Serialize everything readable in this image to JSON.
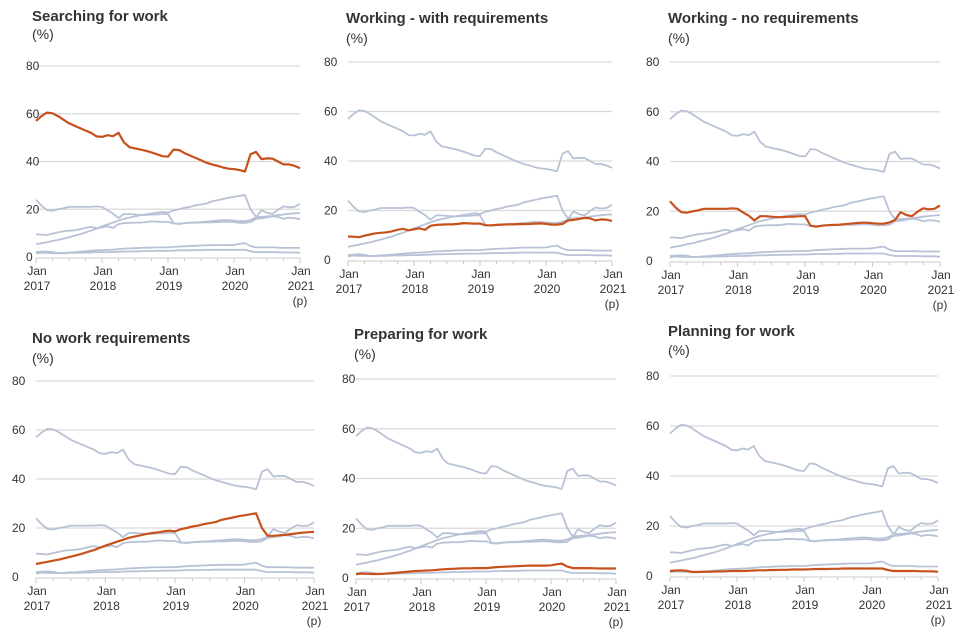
{
  "chart_data": [
    {
      "type": "line",
      "title": "Searching for work",
      "ylabel": "(%)",
      "highlight": 0
    },
    {
      "type": "line",
      "title": "Working - with requirements",
      "ylabel": "(%)",
      "highlight": 1
    },
    {
      "type": "line",
      "title": "Working - no requirements",
      "ylabel": "(%)",
      "highlight": 2
    },
    {
      "type": "line",
      "title": "No work requirements",
      "ylabel": "(%)",
      "highlight": 3
    },
    {
      "type": "line",
      "title": "Preparing for work",
      "ylabel": "(%)",
      "highlight": 4
    },
    {
      "type": "line",
      "title": "Planning for work",
      "ylabel": "(%)",
      "highlight": 5
    }
  ],
  "shared": {
    "ylim": [
      0,
      80
    ],
    "yticks": [
      "0",
      "20",
      "40",
      "60",
      "80"
    ],
    "xticks": [
      {
        "line1": "Jan",
        "line2": "2017",
        "line3": ""
      },
      {
        "line1": "Jan",
        "line2": "2018",
        "line3": ""
      },
      {
        "line1": "Jan",
        "line2": "2019",
        "line3": ""
      },
      {
        "line1": "Jan",
        "line2": "2020",
        "line3": ""
      },
      {
        "line1": "Jan",
        "line2": "2021",
        "line3": "(p)"
      }
    ],
    "x": [
      "2017-01",
      "2017-02",
      "2017-03",
      "2017-04",
      "2017-05",
      "2017-06",
      "2017-07",
      "2017-08",
      "2017-09",
      "2017-10",
      "2017-11",
      "2017-12",
      "2018-01",
      "2018-02",
      "2018-03",
      "2018-04",
      "2018-05",
      "2018-06",
      "2018-07",
      "2018-08",
      "2018-09",
      "2018-10",
      "2018-11",
      "2018-12",
      "2019-01",
      "2019-02",
      "2019-03",
      "2019-04",
      "2019-05",
      "2019-06",
      "2019-07",
      "2019-08",
      "2019-09",
      "2019-10",
      "2019-11",
      "2019-12",
      "2020-01",
      "2020-02",
      "2020-03",
      "2020-04",
      "2020-05",
      "2020-06",
      "2020-07",
      "2020-08",
      "2020-09",
      "2020-10",
      "2020-11",
      "2020-12",
      "2021-01"
    ],
    "series": [
      {
        "name": "Searching for work",
        "values": [
          57,
          59,
          60.5,
          60.2,
          59,
          57.5,
          56,
          55,
          54,
          53,
          52,
          50.5,
          50.3,
          51,
          50.6,
          52,
          48,
          46,
          45.5,
          45,
          44.5,
          43.8,
          43,
          42.2,
          42,
          45,
          44.8,
          43.5,
          42.5,
          41.5,
          40.5,
          39.5,
          38.8,
          38.2,
          37.5,
          37,
          36.8,
          36.4,
          35.8,
          43,
          44,
          41,
          41.3,
          41.2,
          40,
          38.8,
          38.8,
          38.2,
          37.2
        ]
      },
      {
        "name": "Working - with requirements",
        "values": [
          9.5,
          9.4,
          9.2,
          9.8,
          10.3,
          10.8,
          11,
          11.2,
          11.6,
          12.2,
          12.6,
          12,
          12.4,
          12.8,
          12.2,
          13.8,
          14.2,
          14.3,
          14.4,
          14.4,
          14.6,
          14.9,
          14.8,
          14.7,
          14.7,
          14,
          14,
          14.2,
          14.3,
          14.4,
          14.4,
          14.5,
          14.5,
          14.6,
          14.7,
          14.8,
          14.6,
          14.3,
          14.3,
          14.6,
          16,
          16.2,
          16.6,
          17,
          16.8,
          16,
          16.4,
          16.3,
          15.8
        ]
      },
      {
        "name": "Working - no requirements",
        "values": [
          24,
          21.5,
          19.6,
          19.4,
          20,
          20.4,
          21,
          21,
          21,
          21,
          21,
          21.2,
          21,
          19.5,
          18.2,
          16.3,
          18,
          18,
          17.8,
          17.6,
          17.6,
          17.8,
          17.8,
          18,
          18,
          14.2,
          13.8,
          14.2,
          14.4,
          14.5,
          14.6,
          14.8,
          15,
          15.2,
          15.4,
          15.4,
          15.2,
          15,
          15,
          15.5,
          16.5,
          19.6,
          18.5,
          18,
          19.8,
          21.2,
          20.8,
          21,
          22.3
        ]
      },
      {
        "name": "No work requirements",
        "values": [
          5.3,
          5.8,
          6.2,
          6.7,
          7.1,
          7.7,
          8.3,
          8.9,
          9.5,
          10.3,
          11,
          11.9,
          12.8,
          13.6,
          14.4,
          15.2,
          16,
          16.5,
          17,
          17.5,
          17.9,
          18.2,
          18.6,
          18.9,
          18.6,
          19.5,
          20,
          20.6,
          21,
          21.6,
          22,
          22.4,
          23.3,
          23.8,
          24.3,
          24.8,
          25.2,
          25.6,
          26,
          20,
          16.8,
          16.8,
          17,
          17.2,
          17.5,
          17.8,
          18.1,
          18.3,
          18.4
        ]
      },
      {
        "name": "Preparing for work",
        "values": [
          1.5,
          1.8,
          1.7,
          1.6,
          1.6,
          1.7,
          1.9,
          2,
          2.2,
          2.4,
          2.6,
          2.8,
          2.9,
          3,
          3.1,
          3.3,
          3.5,
          3.6,
          3.7,
          3.8,
          3.9,
          3.9,
          4,
          4,
          4,
          4.2,
          4.4,
          4.5,
          4.6,
          4.7,
          4.8,
          4.9,
          5,
          5,
          5,
          5,
          5.1,
          5.5,
          5.8,
          4.6,
          4,
          4,
          4,
          4,
          3.9,
          3.8,
          3.8,
          3.8,
          3.8
        ]
      },
      {
        "name": "Planning for work",
        "values": [
          2,
          2.2,
          2.3,
          2.1,
          1.6,
          1.6,
          1.7,
          1.7,
          1.8,
          1.8,
          1.9,
          2,
          2,
          2,
          2.1,
          2.2,
          2.3,
          2.3,
          2.4,
          2.4,
          2.5,
          2.5,
          2.6,
          2.6,
          2.6,
          2.7,
          2.8,
          2.8,
          2.8,
          2.9,
          2.9,
          3,
          3,
          3,
          3,
          3,
          3,
          3,
          3,
          2.4,
          2,
          2,
          2,
          2,
          2,
          1.9,
          1.9,
          1.9,
          1.7
        ]
      }
    ]
  },
  "colors": {
    "highlight": "#c8501b",
    "other": "#b8c2d6",
    "grid": "#d9d9d9"
  }
}
